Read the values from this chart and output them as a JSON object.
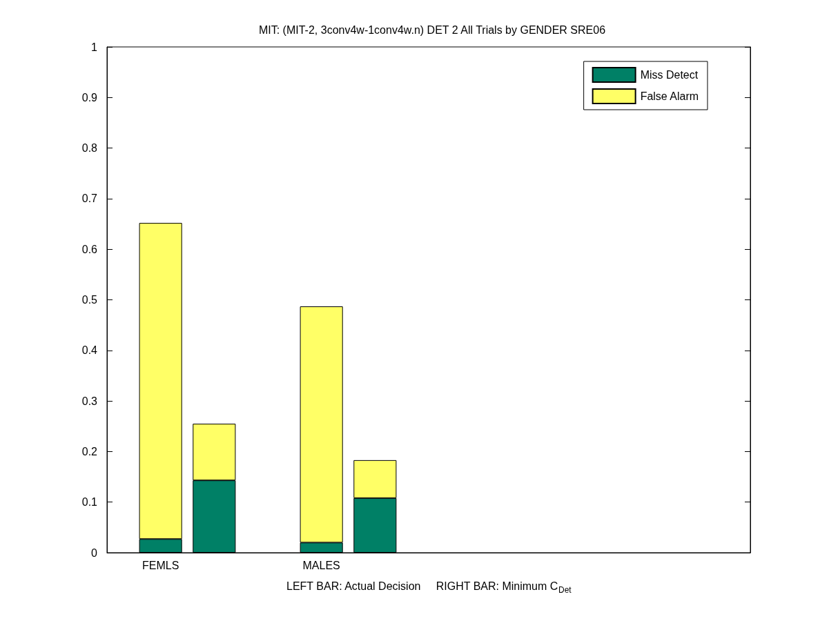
{
  "chart_data": {
    "type": "bar",
    "title": "MIT: (MIT-2, 3conv4w-1conv4w.n) DET 2 All Trials by GENDER SRE06",
    "xlabel": "LEFT BAR: Actual Decision     RIGHT BAR: Minimum C$_{Det}$",
    "categories": [
      null,
      "FEMLS",
      null,
      null,
      "MALES",
      null,
      null,
      null,
      null,
      null,
      null,
      null,
      null
    ],
    "series": [
      {
        "name": "Miss Detect",
        "color": "#008066",
        "values": [
          null,
          0.027,
          0.143,
          null,
          0.02,
          0.108,
          null,
          null,
          null,
          null,
          null,
          null,
          null
        ]
      },
      {
        "name": "False Alarm",
        "color": "#ffff66",
        "values": [
          null,
          0.625,
          0.112,
          null,
          0.467,
          0.075,
          null,
          null,
          null,
          null,
          null,
          null,
          null
        ]
      }
    ],
    "stacked": true,
    "ylim": [
      0,
      1
    ],
    "yticks": [
      0,
      0.1,
      0.2,
      0.3,
      0.4,
      0.5,
      0.6,
      0.7,
      0.8,
      0.9,
      1
    ],
    "grid": false,
    "legend": "top right"
  }
}
